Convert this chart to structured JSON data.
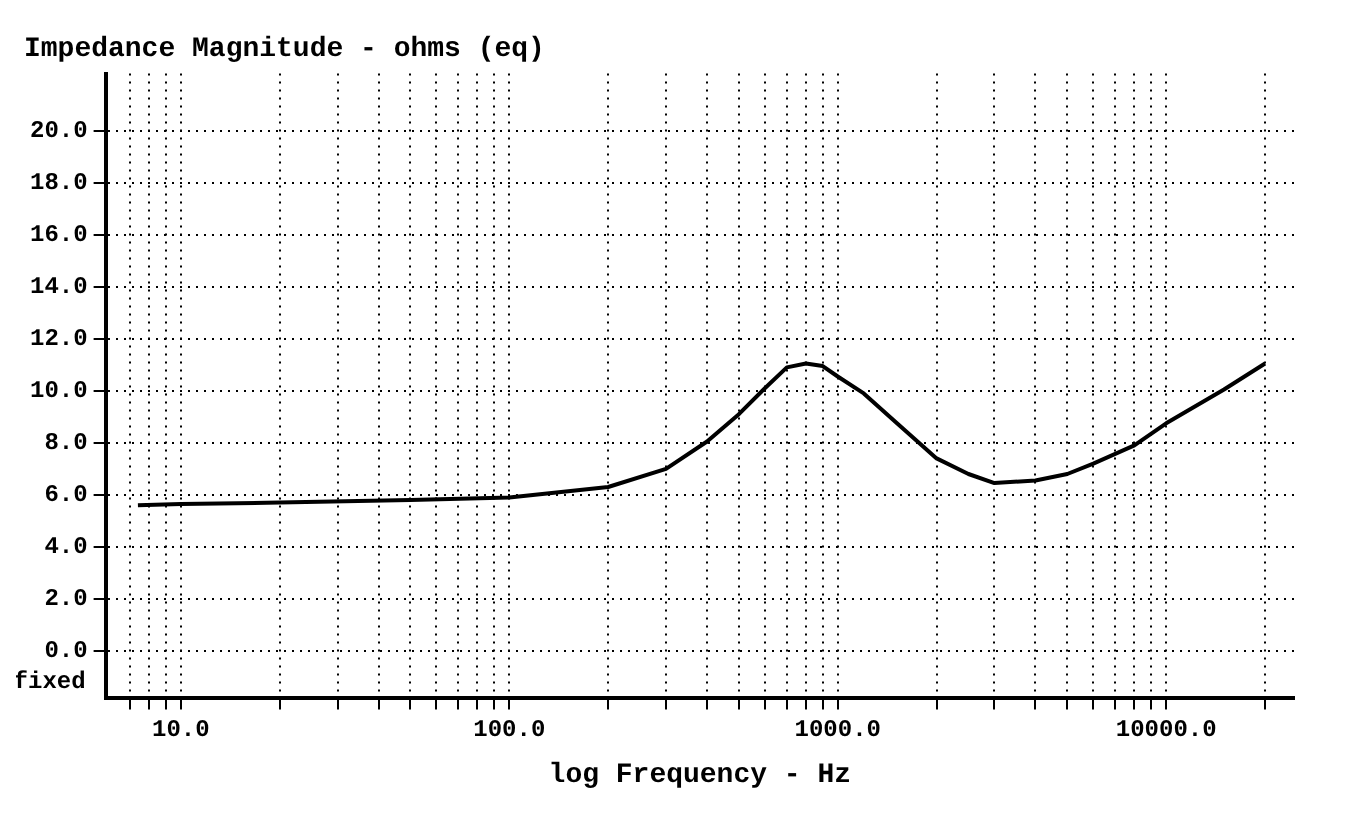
{
  "chart_data": {
    "type": "line",
    "title": "Impedance Magnitude - ohms (eq)",
    "xlabel": "log Frequency - Hz",
    "annotations": [
      "fixed"
    ],
    "log": "x",
    "grid": true,
    "marker": "none",
    "line_style": "solid",
    "x": [
      7.4,
      10,
      20,
      50,
      100,
      200,
      300,
      400,
      500,
      600,
      700,
      800,
      900,
      1000,
      1200,
      1500,
      2000,
      2500,
      3000,
      4000,
      5000,
      6000,
      8000,
      10000,
      15000,
      20000
    ],
    "series": [
      {
        "color": "#000000",
        "values": [
          5.6,
          5.65,
          5.7,
          5.8,
          5.9,
          6.3,
          7.0,
          8.05,
          9.1,
          10.1,
          10.9,
          11.05,
          10.95,
          10.55,
          9.9,
          8.8,
          7.4,
          6.8,
          6.45,
          6.55,
          6.8,
          7.2,
          7.9,
          8.75,
          10.05,
          11.05
        ]
      }
    ],
    "xlim": [
      5.9,
      24500
    ],
    "ylim": [
      -1.8,
      22.2
    ],
    "xticks": [
      {
        "value": 7,
        "label": null
      },
      {
        "value": 8,
        "label": null
      },
      {
        "value": 9,
        "label": null
      },
      {
        "value": 10,
        "label": "10.0"
      },
      {
        "value": 20,
        "label": null
      },
      {
        "value": 30,
        "label": null
      },
      {
        "value": 40,
        "label": null
      },
      {
        "value": 50,
        "label": null
      },
      {
        "value": 60,
        "label": null
      },
      {
        "value": 70,
        "label": null
      },
      {
        "value": 80,
        "label": null
      },
      {
        "value": 90,
        "label": null
      },
      {
        "value": 100,
        "label": "100.0"
      },
      {
        "value": 200,
        "label": null
      },
      {
        "value": 300,
        "label": null
      },
      {
        "value": 400,
        "label": null
      },
      {
        "value": 500,
        "label": null
      },
      {
        "value": 600,
        "label": null
      },
      {
        "value": 700,
        "label": null
      },
      {
        "value": 800,
        "label": null
      },
      {
        "value": 900,
        "label": null
      },
      {
        "value": 1000,
        "label": "1000.0"
      },
      {
        "value": 2000,
        "label": null
      },
      {
        "value": 3000,
        "label": null
      },
      {
        "value": 4000,
        "label": null
      },
      {
        "value": 5000,
        "label": null
      },
      {
        "value": 6000,
        "label": null
      },
      {
        "value": 7000,
        "label": null
      },
      {
        "value": 8000,
        "label": null
      },
      {
        "value": 9000,
        "label": null
      },
      {
        "value": 10000,
        "label": "10000.0"
      },
      {
        "value": 20000,
        "label": null
      }
    ],
    "yticks": [
      {
        "value": 0,
        "label": "0.0"
      },
      {
        "value": 2,
        "label": "2.0"
      },
      {
        "value": 4,
        "label": "4.0"
      },
      {
        "value": 6,
        "label": "6.0"
      },
      {
        "value": 8,
        "label": "8.0"
      },
      {
        "value": 10,
        "label": "10.0"
      },
      {
        "value": 12,
        "label": "12.0"
      },
      {
        "value": 14,
        "label": "14.0"
      },
      {
        "value": 16,
        "label": "16.0"
      },
      {
        "value": 18,
        "label": "18.0"
      },
      {
        "value": 20,
        "label": "20.0"
      }
    ]
  }
}
